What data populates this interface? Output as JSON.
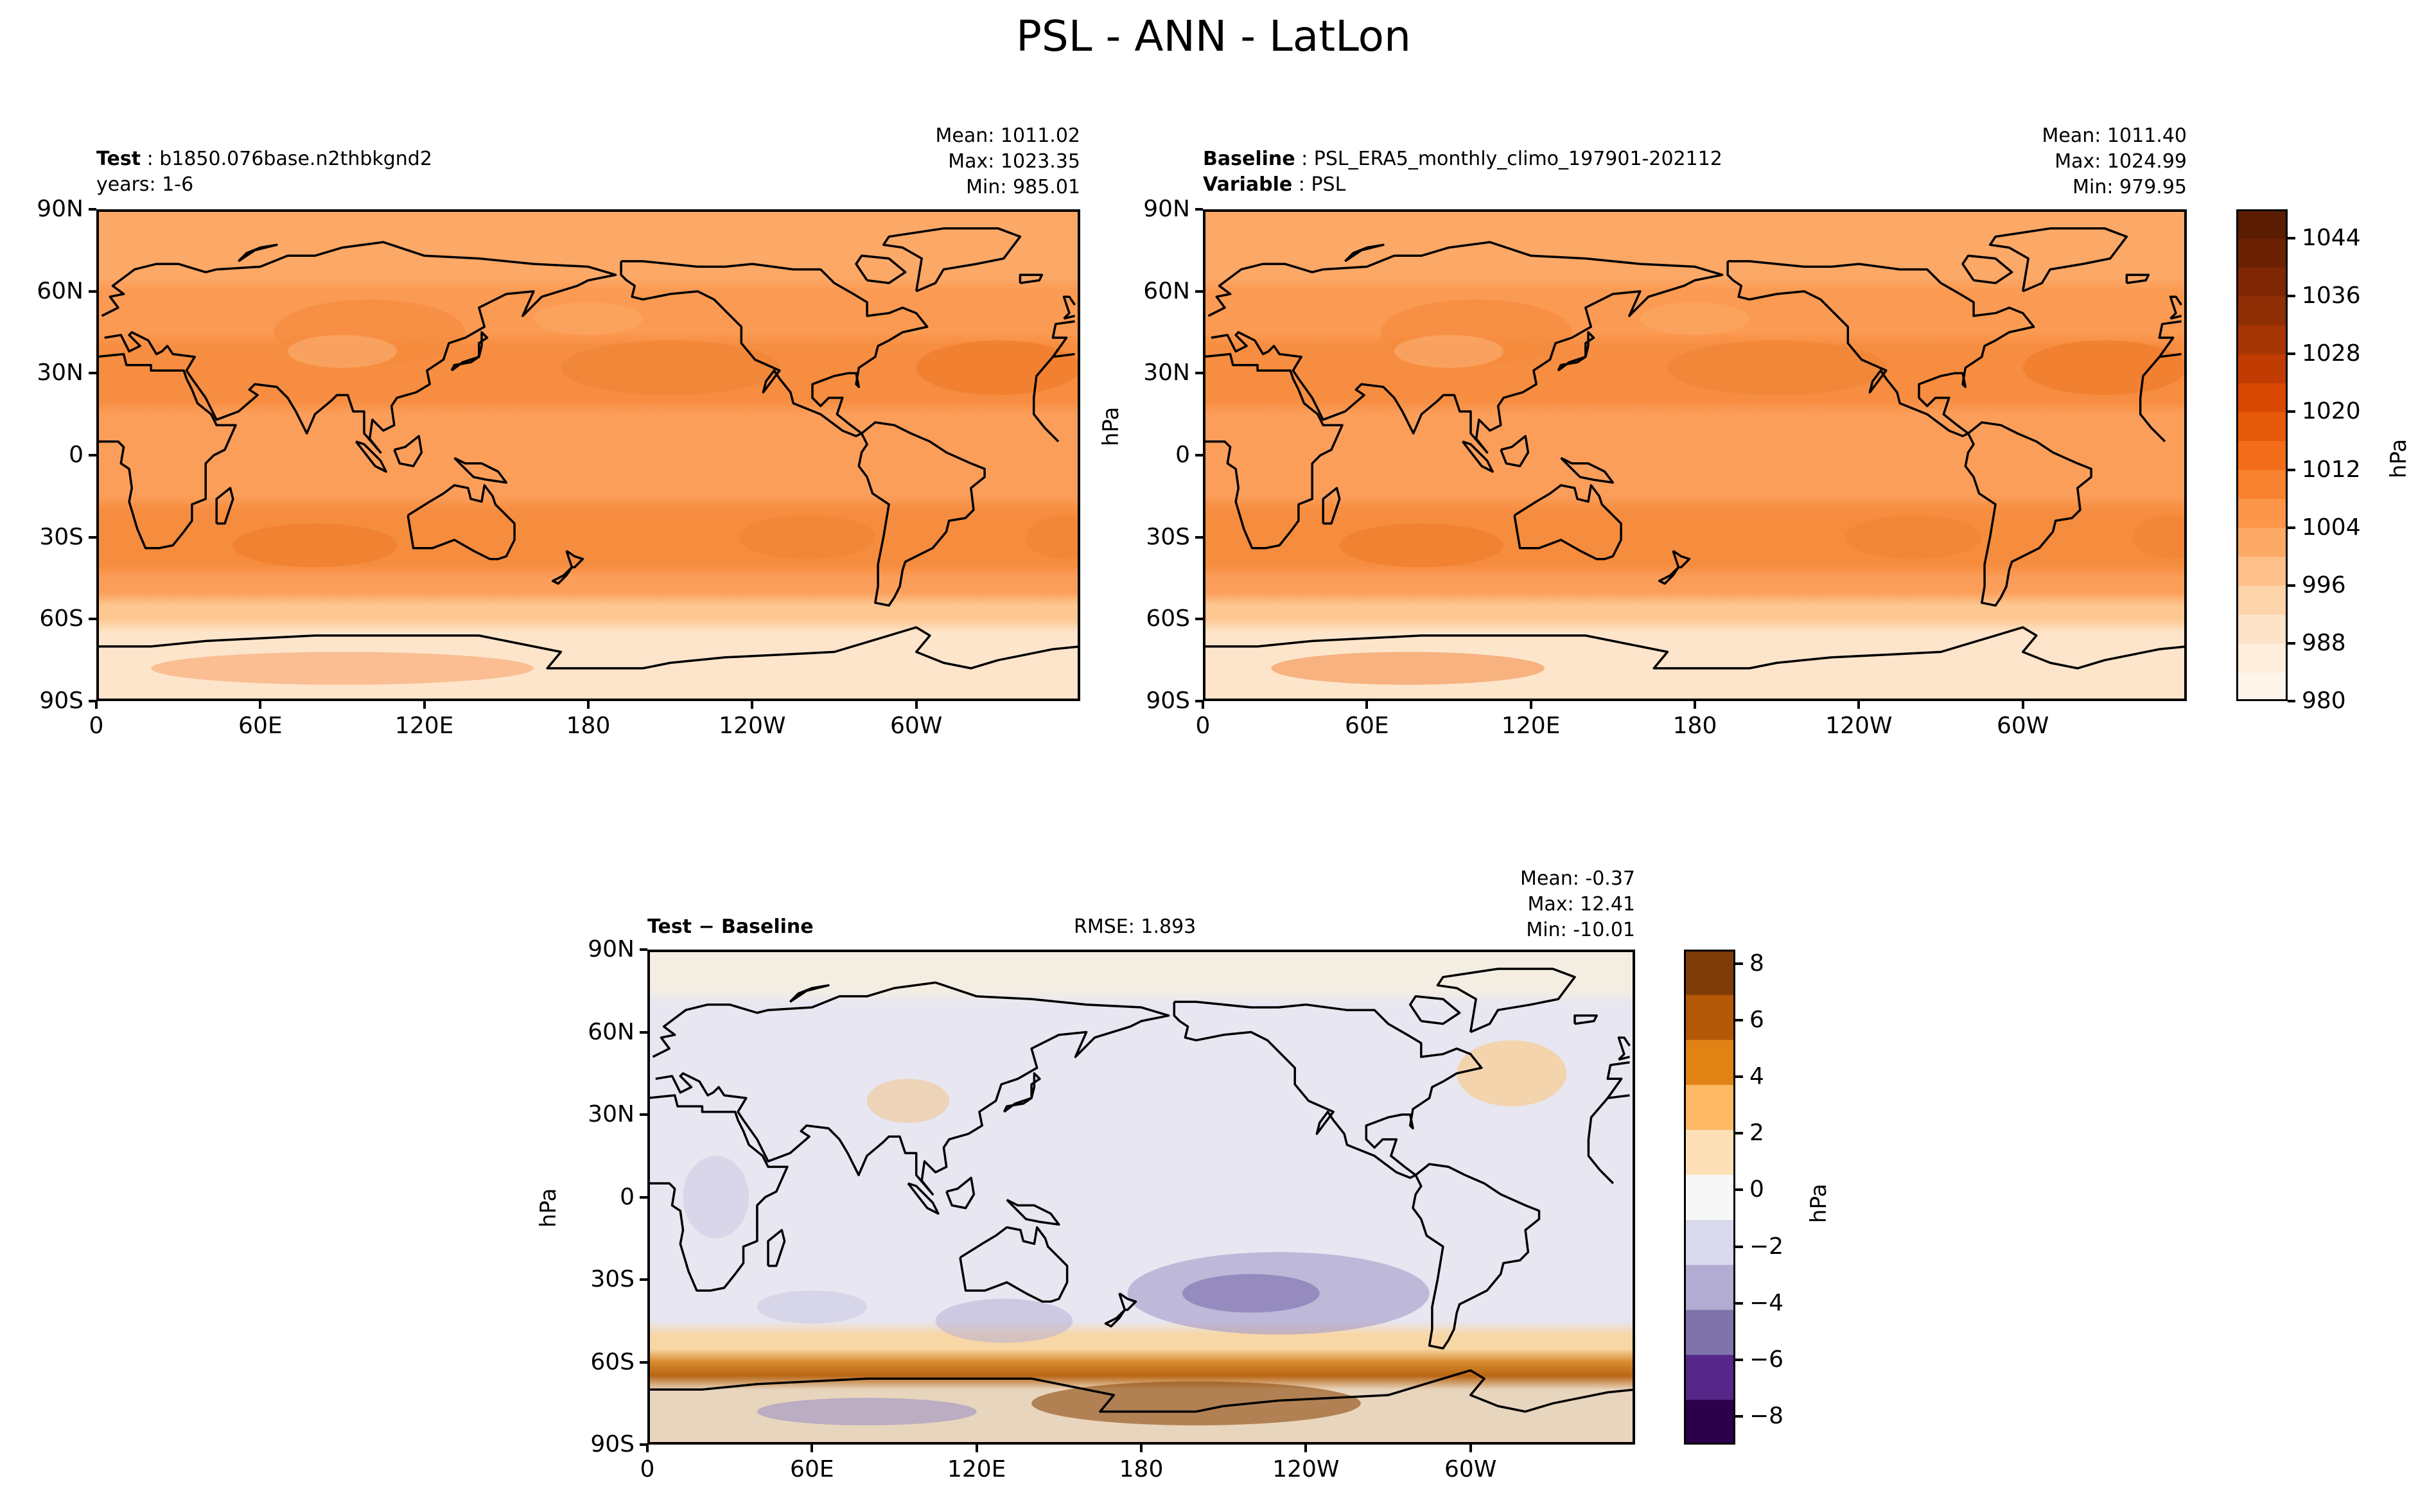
{
  "figure": {
    "title": "PSL - ANN - LatLon"
  },
  "chart_data": [
    {
      "type": "heatmap",
      "panel": "test",
      "label_bold": "Test",
      "label_text": "b1850.076base.n2thbkgnd2",
      "label_line2": "years: 1-6",
      "stats": {
        "mean": "Mean: 1011.02",
        "max": "Max: 1023.35",
        "min": "Min: 985.01"
      },
      "ylabel": "",
      "x_ticks": [
        "0",
        "60E",
        "120E",
        "180",
        "120W",
        "60W"
      ],
      "y_ticks": [
        "90N",
        "60N",
        "30N",
        "0",
        "30S",
        "60S",
        "90S"
      ],
      "xlim": [
        0,
        360
      ],
      "ylim": [
        -90,
        90
      ],
      "colormap": "Oranges",
      "colorbar": "shared (right)"
    },
    {
      "type": "heatmap",
      "panel": "baseline",
      "label_bold": "Baseline",
      "label_text": "PSL_ERA5_monthly_climo_197901-202112",
      "label_bold2": "Variable",
      "label_text2": "PSL",
      "stats": {
        "mean": "Mean: 1011.40",
        "max": "Max: 1024.99",
        "min": "Min: 979.95"
      },
      "ylabel": "hPa",
      "x_ticks": [
        "0",
        "60E",
        "120E",
        "180",
        "120W",
        "60W"
      ],
      "y_ticks": [
        "90N",
        "60N",
        "30N",
        "0",
        "30S",
        "60S",
        "90S"
      ],
      "xlim": [
        0,
        360
      ],
      "ylim": [
        -90,
        90
      ],
      "colormap": "Oranges",
      "colorbar": {
        "label": "hPa",
        "range": [
          980,
          1048
        ],
        "ticks": [
          "980",
          "988",
          "996",
          "1004",
          "1012",
          "1020",
          "1028",
          "1036",
          "1044"
        ],
        "colors": [
          "#fff5eb",
          "#feeddc",
          "#fde3c8",
          "#fdd3a9",
          "#fdc088",
          "#fdaa66",
          "#fd9649",
          "#f98230",
          "#f26d1a",
          "#e65a0b",
          "#d84801",
          "#c03c02",
          "#a63603",
          "#8f2e04",
          "#7f2704",
          "#6b2203",
          "#5a1d02"
        ]
      }
    },
    {
      "type": "heatmap",
      "panel": "difference",
      "label_bold": "Test − Baseline",
      "rmse": "RMSE: 1.893",
      "stats": {
        "mean": "Mean: -0.37",
        "max": "Max: 12.41",
        "min": "Min: -10.01"
      },
      "ylabel": "hPa",
      "x_ticks": [
        "0",
        "60E",
        "120E",
        "180",
        "120W",
        "60W"
      ],
      "y_ticks": [
        "90N",
        "60N",
        "30N",
        "0",
        "30S",
        "60S",
        "90S"
      ],
      "xlim": [
        0,
        360
      ],
      "ylim": [
        -90,
        90
      ],
      "colormap": "PuOr_r",
      "colorbar": {
        "label": "hPa",
        "range": [
          -9,
          8.5
        ],
        "ticks": [
          "−8",
          "−6",
          "−4",
          "−2",
          "0",
          "2",
          "4",
          "6",
          "8"
        ],
        "colors": [
          "#2d004b",
          "#542788",
          "#8073ac",
          "#b2abd2",
          "#d8daeb",
          "#f7f7f7",
          "#fee0b6",
          "#fdb863",
          "#e08214",
          "#b35806",
          "#7f3b08"
        ]
      }
    }
  ]
}
